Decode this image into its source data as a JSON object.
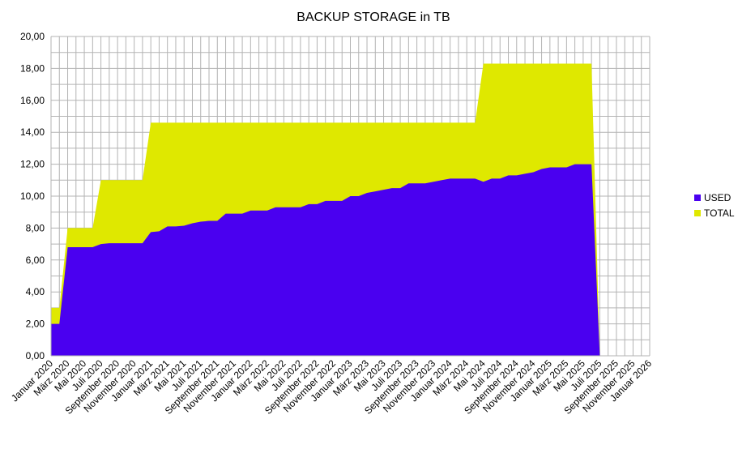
{
  "chart_data": {
    "type": "area",
    "title": "BACKUP STORAGE in TB",
    "xlabel": "",
    "ylabel": "",
    "ylim": [
      0,
      20
    ],
    "yticks": [
      "0,00",
      "2,00",
      "4,00",
      "6,00",
      "8,00",
      "10,00",
      "12,00",
      "14,00",
      "16,00",
      "18,00",
      "20,00"
    ],
    "xtick_labels": [
      "Januar 2020",
      "März 2020",
      "Mai 2020",
      "Juli 2020",
      "September 2020",
      "November 2020",
      "Januar 2021",
      "März 2021",
      "Mai 2021",
      "Juli 2021",
      "September 2021",
      "November 2021",
      "Januar 2022",
      "März 2022",
      "Mai 2022",
      "Juli 2022",
      "September 2022",
      "November 2022",
      "Januar 2023",
      "März 2023",
      "Mai 2023",
      "Juli 2023",
      "September 2023",
      "November 2023",
      "Januar 2024",
      "März 2024",
      "Mai 2024",
      "Juli 2024",
      "September 2024",
      "November 2024",
      "Januar 2025",
      "März 2025",
      "Mai 2025",
      "Juli 2025",
      "September 2025",
      "November 2025",
      "Januar 2026"
    ],
    "grid": true,
    "legend_position": "right",
    "x": [
      "2020-01",
      "2020-02",
      "2020-03",
      "2020-04",
      "2020-05",
      "2020-06",
      "2020-07",
      "2020-08",
      "2020-09",
      "2020-10",
      "2020-11",
      "2020-12",
      "2021-01",
      "2021-02",
      "2021-03",
      "2021-04",
      "2021-05",
      "2021-06",
      "2021-07",
      "2021-08",
      "2021-09",
      "2021-10",
      "2021-11",
      "2021-12",
      "2022-01",
      "2022-02",
      "2022-03",
      "2022-04",
      "2022-05",
      "2022-06",
      "2022-07",
      "2022-08",
      "2022-09",
      "2022-10",
      "2022-11",
      "2022-12",
      "2023-01",
      "2023-02",
      "2023-03",
      "2023-04",
      "2023-05",
      "2023-06",
      "2023-07",
      "2023-08",
      "2023-09",
      "2023-10",
      "2023-11",
      "2023-12",
      "2024-01",
      "2024-02",
      "2024-03",
      "2024-04",
      "2024-05",
      "2024-06",
      "2024-07",
      "2024-08",
      "2024-09",
      "2024-10",
      "2024-11",
      "2024-12",
      "2025-01",
      "2025-02",
      "2025-03",
      "2025-04",
      "2025-05",
      "2025-06",
      "2025-07"
    ],
    "series": [
      {
        "name": "TOTAL",
        "color": "#dfe800",
        "values": [
          3,
          3,
          8,
          8,
          8,
          8,
          11,
          11,
          11,
          11,
          11,
          11,
          14.6,
          14.6,
          14.6,
          14.6,
          14.6,
          14.6,
          14.6,
          14.6,
          14.6,
          14.6,
          14.6,
          14.6,
          14.6,
          14.6,
          14.6,
          14.6,
          14.6,
          14.6,
          14.6,
          14.6,
          14.6,
          14.6,
          14.6,
          14.6,
          14.6,
          14.6,
          14.6,
          14.6,
          14.6,
          14.6,
          14.6,
          14.6,
          14.6,
          14.6,
          14.6,
          14.6,
          14.6,
          14.6,
          14.6,
          14.6,
          18.3,
          18.3,
          18.3,
          18.3,
          18.3,
          18.3,
          18.3,
          18.3,
          18.3,
          18.3,
          18.3,
          18.3,
          18.3,
          18.3,
          0
        ]
      },
      {
        "name": "USED",
        "color": "#4a00f0",
        "values": [
          2,
          2,
          6.8,
          6.8,
          6.8,
          6.8,
          7,
          7.05,
          7.05,
          7.05,
          7.05,
          7.05,
          7.75,
          7.8,
          8.1,
          8.1,
          8.15,
          8.3,
          8.4,
          8.45,
          8.45,
          8.9,
          8.9,
          8.9,
          9.1,
          9.1,
          9.1,
          9.3,
          9.3,
          9.3,
          9.3,
          9.5,
          9.5,
          9.7,
          9.7,
          9.7,
          10,
          10,
          10.2,
          10.3,
          10.4,
          10.5,
          10.5,
          10.8,
          10.8,
          10.8,
          10.9,
          11,
          11.1,
          11.1,
          11.1,
          11.1,
          10.9,
          11.1,
          11.1,
          11.3,
          11.3,
          11.4,
          11.5,
          11.7,
          11.8,
          11.8,
          11.8,
          12,
          12,
          12,
          0
        ]
      }
    ],
    "legend_order": [
      "USED",
      "TOTAL"
    ]
  }
}
